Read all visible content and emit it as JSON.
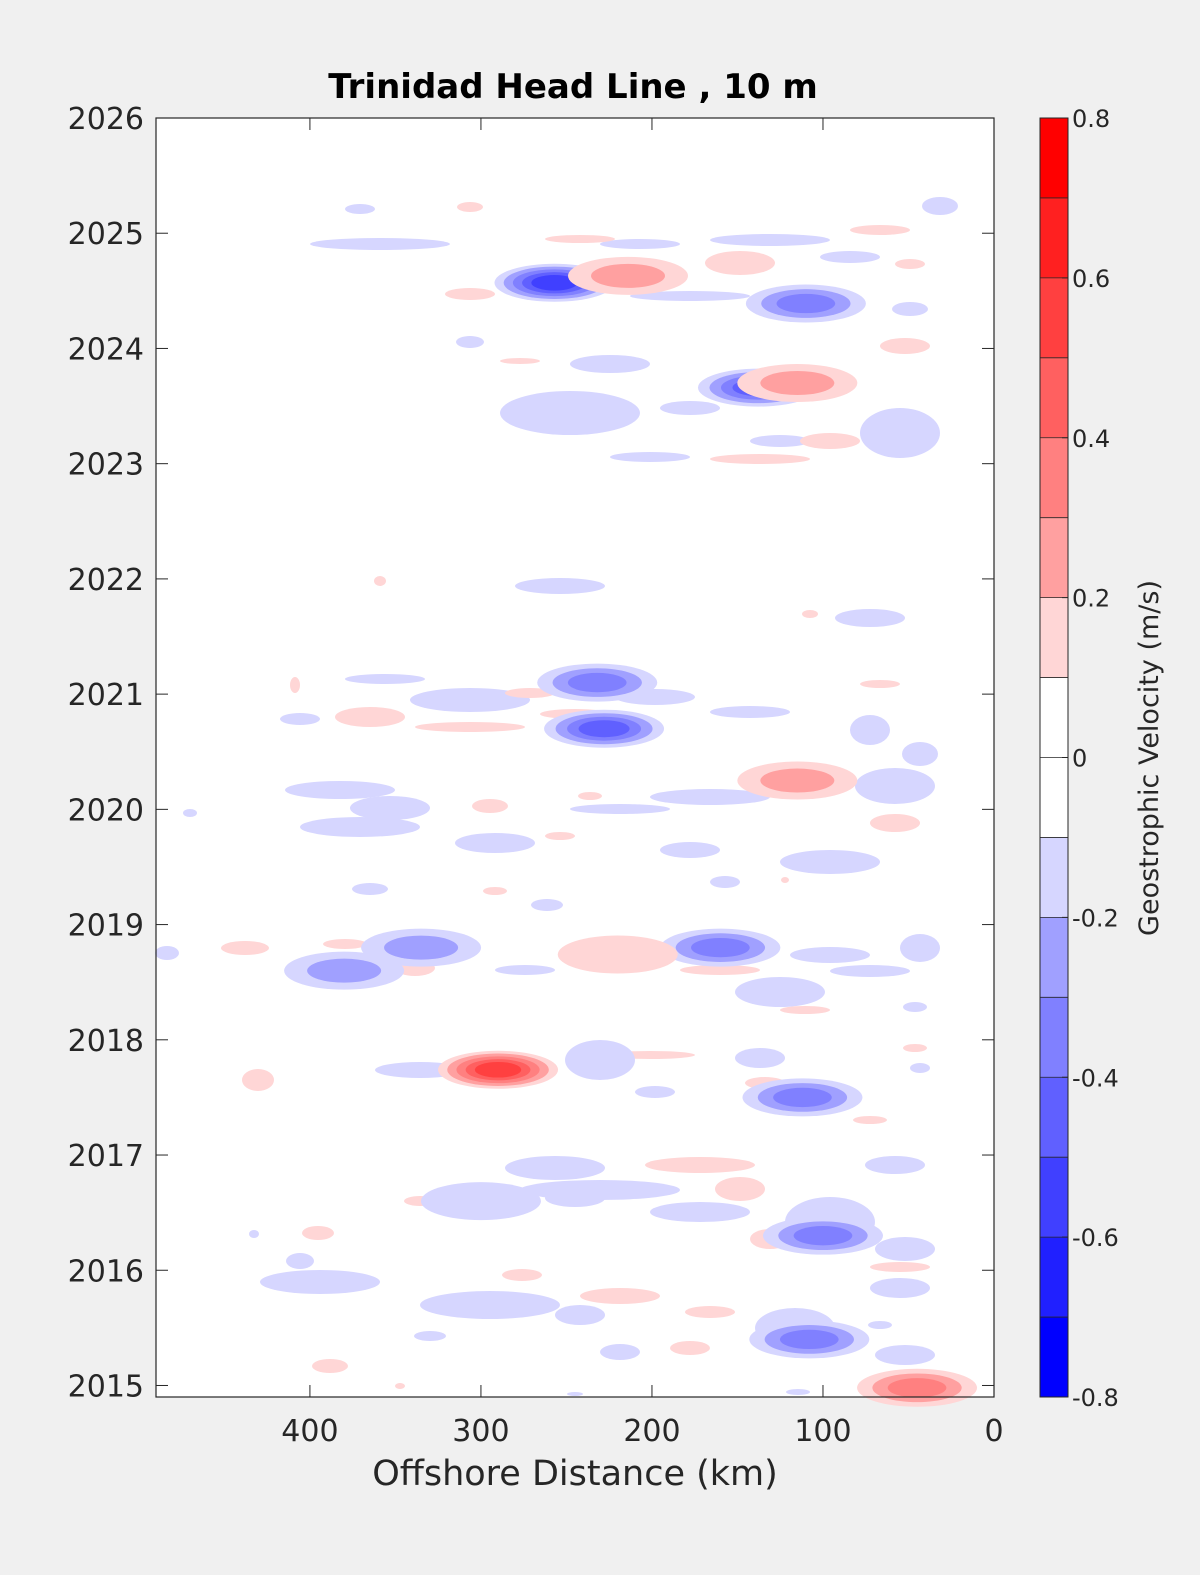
{
  "chart_data": {
    "type": "heatmap",
    "title": "Trinidad Head Line , 10 m",
    "xlabel": "Offshore Distance (km)",
    "ylabel": "",
    "x_axis": {
      "range": [
        490,
        0
      ],
      "reversed": true,
      "ticks": [
        400,
        300,
        200,
        100,
        0
      ]
    },
    "y_axis": {
      "range": [
        2014.9,
        2026
      ],
      "ticks": [
        2015,
        2016,
        2017,
        2018,
        2019,
        2020,
        2021,
        2022,
        2023,
        2024,
        2025,
        2026
      ]
    },
    "colorbar": {
      "label": "Geostrophic Velocity (m/s)",
      "range": [
        -0.8,
        0.8
      ],
      "ticks": [
        0.8,
        0.6,
        0.4,
        0.2,
        0,
        -0.2,
        -0.4,
        -0.6,
        -0.8
      ],
      "levels": [
        {
          "min": 0.7,
          "max": 0.8,
          "color": "#ff0000"
        },
        {
          "min": 0.6,
          "max": 0.7,
          "color": "#ff2020"
        },
        {
          "min": 0.5,
          "max": 0.6,
          "color": "#ff4040"
        },
        {
          "min": 0.4,
          "max": 0.5,
          "color": "#ff6060"
        },
        {
          "min": 0.3,
          "max": 0.4,
          "color": "#ff8080"
        },
        {
          "min": 0.2,
          "max": 0.3,
          "color": "#ffa0a0"
        },
        {
          "min": 0.1,
          "max": 0.2,
          "color": "#ffd6d6"
        },
        {
          "min": 0.0,
          "max": 0.1,
          "color": "#ffffff"
        },
        {
          "min": -0.1,
          "max": 0.0,
          "color": "#ffffff"
        },
        {
          "min": -0.2,
          "max": -0.1,
          "color": "#d6d6ff"
        },
        {
          "min": -0.3,
          "max": -0.2,
          "color": "#a0a0ff"
        },
        {
          "min": -0.4,
          "max": -0.3,
          "color": "#8080ff"
        },
        {
          "min": -0.5,
          "max": -0.4,
          "color": "#6060ff"
        },
        {
          "min": -0.6,
          "max": -0.5,
          "color": "#4040ff"
        },
        {
          "min": -0.7,
          "max": -0.6,
          "color": "#2020ff"
        },
        {
          "min": -0.8,
          "max": -0.7,
          "color": "#0000ff"
        }
      ]
    },
    "grid": false,
    "features": [
      {
        "x": 257,
        "y": 2024.57,
        "v": -0.62
      },
      {
        "x": 138,
        "y": 2023.66,
        "v": -0.5
      },
      {
        "x": 110,
        "y": 2024.39,
        "v": -0.42
      },
      {
        "x": 214,
        "y": 2024.63,
        "v": 0.32
      },
      {
        "x": 290,
        "y": 2017.74,
        "v": 0.62
      },
      {
        "x": 228,
        "y": 2020.7,
        "v": -0.45
      },
      {
        "x": 232,
        "y": 2021.1,
        "v": -0.35
      },
      {
        "x": 160,
        "y": 2018.8,
        "v": -0.4
      },
      {
        "x": 220,
        "y": 2018.74,
        "v": 0.24
      },
      {
        "x": 112,
        "y": 2017.5,
        "v": -0.38
      },
      {
        "x": 108,
        "y": 2015.4,
        "v": -0.38
      },
      {
        "x": 100,
        "y": 2016.3,
        "v": -0.35
      },
      {
        "x": 45,
        "y": 2014.98,
        "v": 0.35
      },
      {
        "x": 115,
        "y": 2023.7,
        "v": 0.25
      },
      {
        "x": 115,
        "y": 2020.25,
        "v": 0.3
      },
      {
        "x": 335,
        "y": 2018.8,
        "v": -0.3
      },
      {
        "x": 380,
        "y": 2018.6,
        "v": -0.28
      },
      {
        "x": 300,
        "y": 2016.6,
        "v": -0.22
      }
    ]
  }
}
